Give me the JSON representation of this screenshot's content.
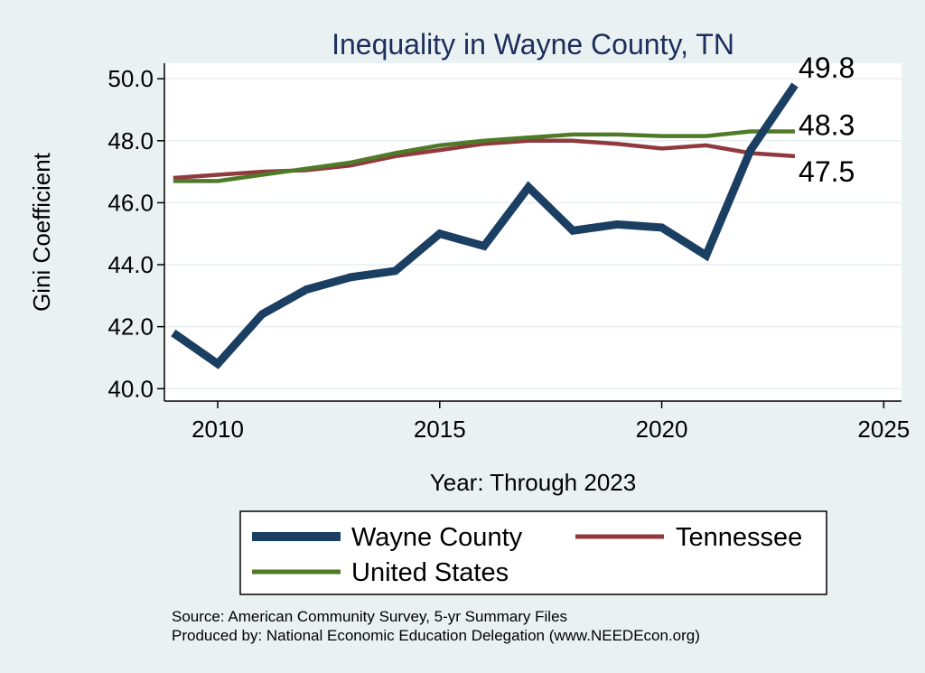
{
  "chart_data": {
    "type": "line",
    "title": "Inequality in Wayne County, TN",
    "xlabel": "Year: Through 2023",
    "ylabel": "Gini Coefficient",
    "xlim": [
      2008.8,
      2025.4
    ],
    "ylim": [
      39.6,
      50.5
    ],
    "x_ticks": [
      2010,
      2015,
      2020,
      2025
    ],
    "y_ticks": [
      40.0,
      42.0,
      44.0,
      46.0,
      48.0,
      50.0
    ],
    "x_tick_labels": [
      "2010",
      "2015",
      "2020",
      "2025"
    ],
    "y_tick_labels": [
      "40.0",
      "42.0",
      "44.0",
      "46.0",
      "48.0",
      "50.0"
    ],
    "grid": true,
    "x": [
      2009,
      2010,
      2011,
      2012,
      2013,
      2014,
      2015,
      2016,
      2017,
      2018,
      2019,
      2020,
      2021,
      2022,
      2023
    ],
    "series": [
      {
        "name": "Wayne County",
        "color": "#1b3f63",
        "values": [
          41.8,
          40.8,
          42.4,
          43.2,
          43.6,
          43.8,
          45.0,
          44.6,
          46.5,
          45.1,
          45.3,
          45.2,
          44.3,
          47.7,
          49.8
        ],
        "end_label": "49.8"
      },
      {
        "name": "Tennessee",
        "color": "#903a3e",
        "values": [
          46.8,
          46.9,
          47.0,
          47.05,
          47.2,
          47.5,
          47.7,
          47.9,
          48.0,
          48.0,
          47.9,
          47.75,
          47.85,
          47.6,
          47.5
        ],
        "end_label": "47.5"
      },
      {
        "name": "United States",
        "color": "#4f7a28",
        "values": [
          46.7,
          46.7,
          46.9,
          47.1,
          47.3,
          47.6,
          47.85,
          48.0,
          48.1,
          48.2,
          48.2,
          48.15,
          48.15,
          48.3,
          48.3
        ],
        "end_label": "48.3"
      }
    ],
    "legend": {
      "placement": "bottom",
      "entries": [
        "Wayne County",
        "Tennessee",
        "United States"
      ]
    },
    "notes": [
      "Source: American Community Survey, 5-yr Summary Files",
      "Produced by: National Economic Education Delegation (www.NEEDEcon.org)"
    ]
  }
}
